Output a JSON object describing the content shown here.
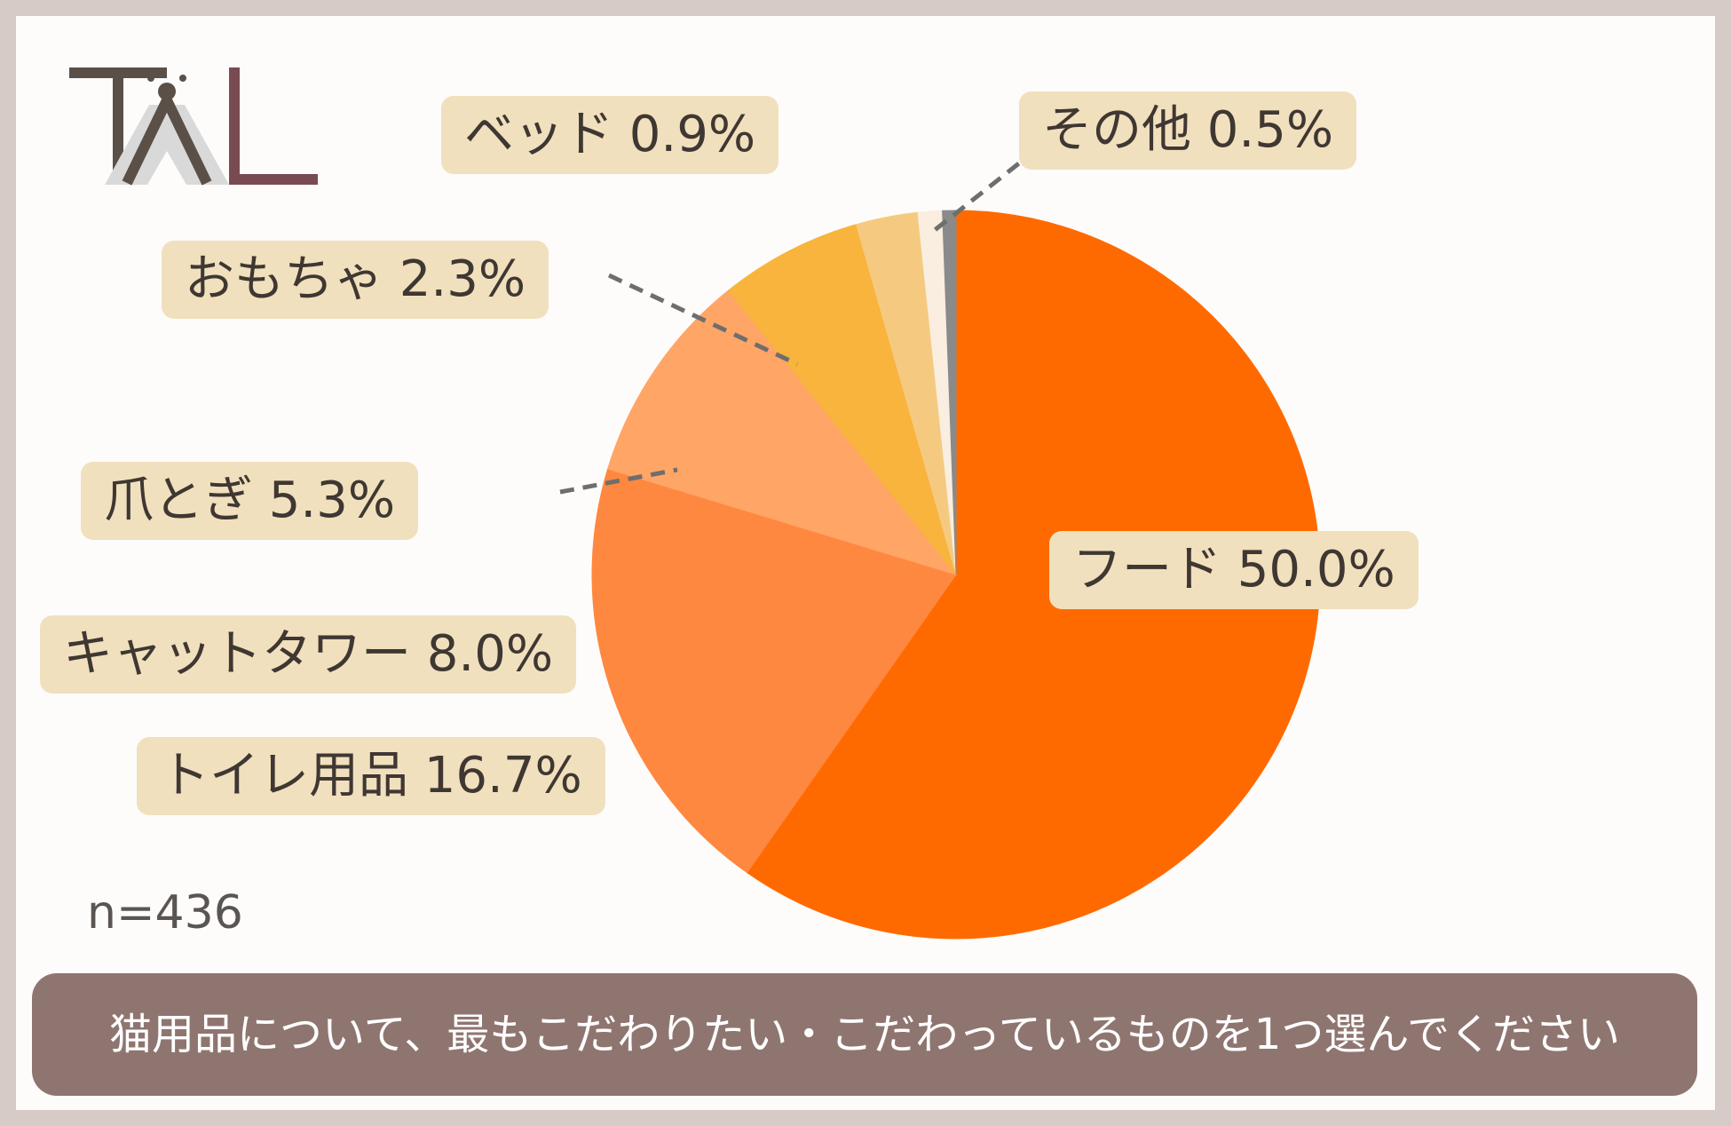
{
  "logo": {
    "text": "TAL",
    "color_dark": "#5a5048",
    "color_accent": "#7a4a52",
    "color_triangle": "#d9d9d9"
  },
  "chart_data": {
    "type": "pie",
    "title": "",
    "sample_size": "n=436",
    "slices": [
      {
        "name": "フード",
        "value": 50.0,
        "label": "フード 50.0%",
        "color": "#ff6a00"
      },
      {
        "name": "トイレ用品",
        "value": 16.7,
        "label": "トイレ用品 16.7%",
        "color": "#ff8840"
      },
      {
        "name": "キャットタワー",
        "value": 8.0,
        "label": "キャットタワー 8.0%",
        "color": "#ffa566"
      },
      {
        "name": "爪とぎ",
        "value": 5.3,
        "label": "爪とぎ 5.3%",
        "color": "#f8b43c"
      },
      {
        "name": "おもちゃ",
        "value": 2.3,
        "label": "おもちゃ 2.3%",
        "color": "#f5ca80"
      },
      {
        "name": "ベッド",
        "value": 0.9,
        "label": "ベッド 0.9%",
        "color": "#f9eedf"
      },
      {
        "name": "その他",
        "value": 0.5,
        "label": "その他 0.5%",
        "color": "#8a8a8a"
      }
    ]
  },
  "question": "猫用品について、最もこだわりたい・こだわっているものを1つ選んでください",
  "colors": {
    "label_bg": "#f1e0bd",
    "leader": "#6e6e6e",
    "frame": "#d6cbc6",
    "question_bg": "#8f7570"
  }
}
